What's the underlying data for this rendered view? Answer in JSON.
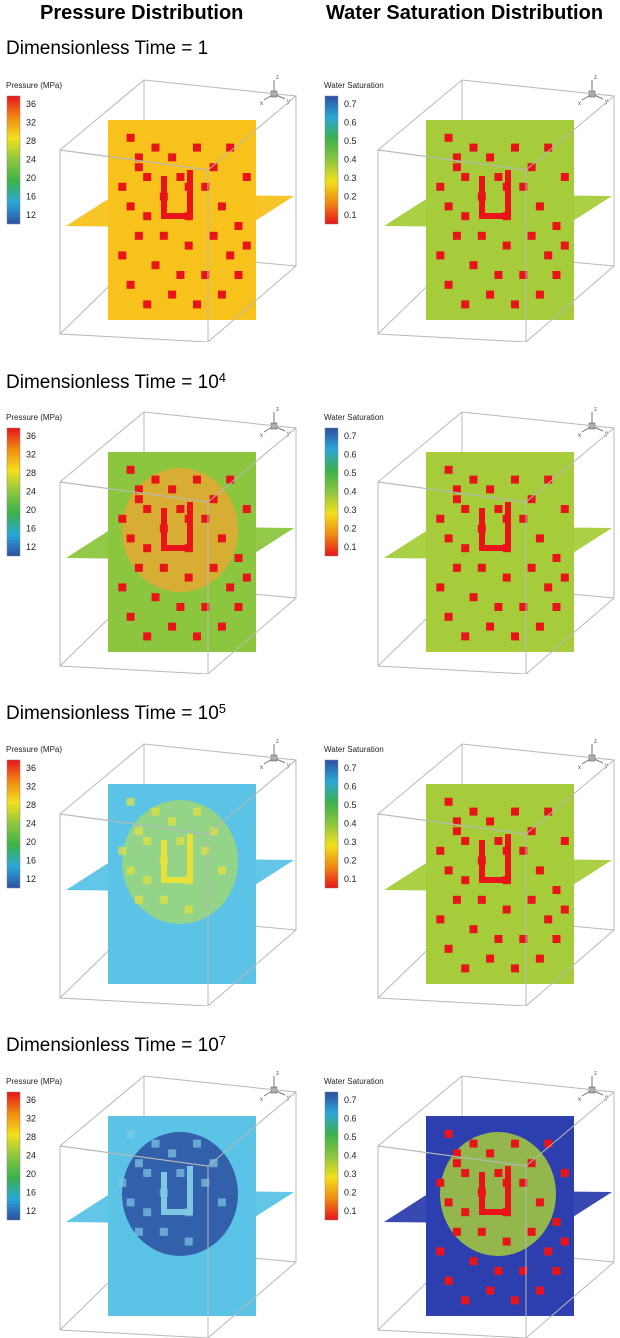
{
  "columns": {
    "left_title": "Pressure Distribution",
    "right_title": "Water Saturation Distribution"
  },
  "rows": [
    {
      "label_prefix": "Dimensionless Time = ",
      "base": "1",
      "exponent": ""
    },
    {
      "label_prefix": "Dimensionless Time = ",
      "base": "10",
      "exponent": "4"
    },
    {
      "label_prefix": "Dimensionless Time = ",
      "base": "10",
      "exponent": "5"
    },
    {
      "label_prefix": "Dimensionless Time = ",
      "base": "10",
      "exponent": "7"
    }
  ],
  "pressure_colorbar": {
    "title": "Pressure (MPa)",
    "ticks": [
      "36",
      "32",
      "28",
      "24",
      "20",
      "16",
      "12"
    ],
    "colors": [
      "#e8141a",
      "#f08a12",
      "#f2e01a",
      "#8cc63f",
      "#3bb24a",
      "#2aa7d8",
      "#2c4fa0"
    ]
  },
  "saturation_colorbar": {
    "title": "Water Saturation",
    "ticks": [
      "0.7",
      "0.6",
      "0.5",
      "0.4",
      "0.3",
      "0.2",
      "0.1"
    ],
    "colors": [
      "#2c4fa0",
      "#2aa7d8",
      "#3bb24a",
      "#8cc63f",
      "#f2e01a",
      "#f08a12",
      "#e8141a"
    ]
  },
  "axes_triad": {
    "x": "x",
    "y": "y",
    "z": "z"
  },
  "panel_colors": {
    "pressure": [
      "#f7c21b",
      "#8cc63f",
      "#5bc3e6",
      "#5bc3e6"
    ],
    "pressure_center": [
      "#f7c21b",
      "#f0a430",
      "#a6d96a",
      "#2c4fa0"
    ],
    "saturation": [
      "#a6cc3b",
      "#a6cc3b",
      "#a6cc3b",
      "#2d3fae"
    ],
    "saturation_center": [
      "#a6cc3b",
      "#a6cc3b",
      "#a6cc3b",
      "#a6cc3b"
    ],
    "fracture": [
      "#e8141a",
      "#e8141a",
      "#e0e030",
      "#e8141a"
    ]
  }
}
